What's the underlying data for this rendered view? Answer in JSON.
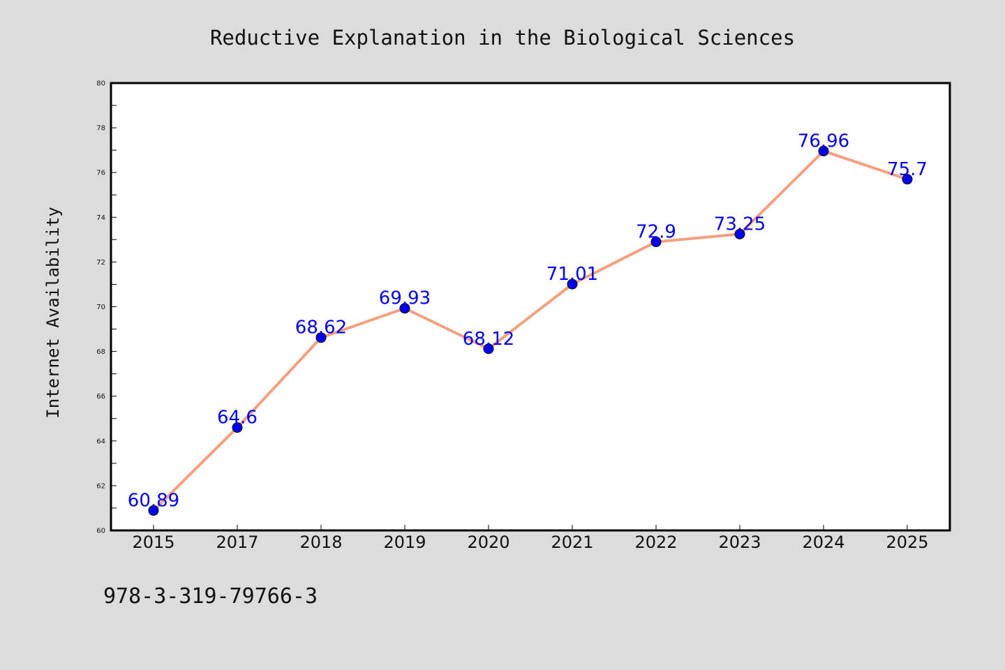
{
  "figure": {
    "background": "#dcdcdc",
    "plot_background": "#ffffff",
    "footer": "978-3-319-79766-3"
  },
  "chart_data": {
    "type": "line",
    "title": "Reductive Explanation in the Biological Sciences",
    "xlabel": "",
    "ylabel": "Internet Availability",
    "categories": [
      "2015",
      "2017",
      "2018",
      "2019",
      "2020",
      "2021",
      "2022",
      "2023",
      "2024",
      "2025"
    ],
    "series": [
      {
        "values": [
          60.89,
          64.6,
          68.62,
          69.93,
          68.12,
          71.01,
          72.9,
          73.25,
          76.96,
          75.7
        ],
        "data_labels": [
          "60.89",
          "64.6",
          "68.62",
          "69.93",
          "68.12",
          "71.01",
          "72.9",
          "73.25",
          "76.96",
          "75.7"
        ],
        "line_color": "#f4a07e",
        "marker_color": "#0000ee",
        "label_color": "#0000ee"
      }
    ],
    "ylim": [
      60,
      80
    ],
    "yticks": [
      60,
      62,
      64,
      66,
      68,
      70,
      72,
      74,
      76,
      78,
      80
    ],
    "grid": false,
    "legend": "none"
  }
}
